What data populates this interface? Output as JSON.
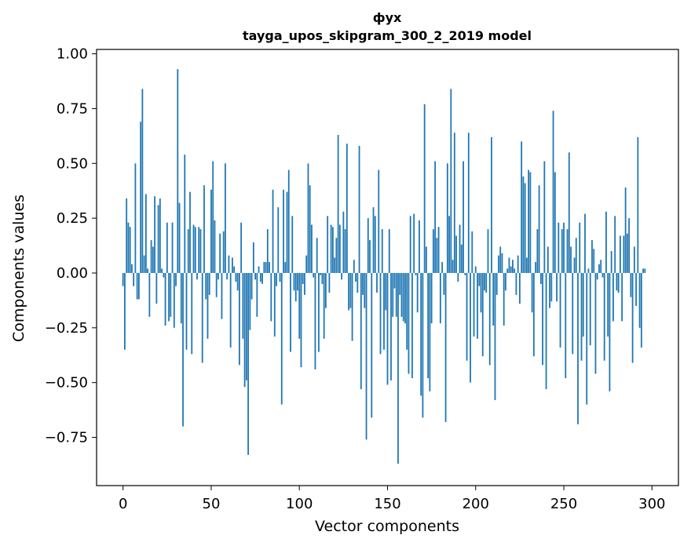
{
  "chart_data": {
    "type": "bar",
    "title_line1": "фух",
    "title_line2": "tayga_upos_skipgram_300_2_2019 model",
    "xlabel": "Vector components",
    "ylabel": "Components values",
    "xlim": [
      -15,
      315
    ],
    "ylim": [
      -0.97,
      1.02
    ],
    "xticks": [
      0,
      50,
      100,
      150,
      200,
      250,
      300
    ],
    "xtick_labels": [
      "0",
      "50",
      "100",
      "150",
      "200",
      "250",
      "300"
    ],
    "yticks": [
      1.0,
      0.75,
      0.5,
      0.25,
      0.0,
      -0.25,
      -0.5,
      -0.75
    ],
    "ytick_labels": [
      "1.00",
      "0.75",
      "0.50",
      "0.25",
      "0.00",
      "−0.25",
      "−0.50",
      "−0.75"
    ],
    "grid": false,
    "bar_color": "#1f77b4",
    "values": [
      -0.06,
      -0.35,
      0.34,
      0.23,
      0.21,
      0.04,
      -0.06,
      0.5,
      -0.12,
      -0.12,
      0.69,
      0.84,
      0.08,
      0.36,
      0.02,
      -0.2,
      0.15,
      0.12,
      0.35,
      -0.14,
      0.31,
      0.34,
      0.02,
      -0.02,
      -0.24,
      0.23,
      -0.22,
      -0.2,
      0.23,
      -0.25,
      -0.06,
      0.93,
      0.32,
      -0.23,
      -0.7,
      0.54,
      -0.35,
      0.2,
      0.37,
      -0.37,
      0.22,
      0.21,
      -0.03,
      0.21,
      0.2,
      -0.41,
      0.4,
      -0.12,
      -0.3,
      -0.1,
      0.38,
      0.51,
      0.24,
      -0.11,
      -0.03,
      0.18,
      -0.21,
      0.19,
      0.5,
      -0.03,
      0.08,
      -0.34,
      0.07,
      0.03,
      -0.04,
      -0.08,
      -0.42,
      0.23,
      -0.3,
      -0.52,
      -0.49,
      -0.83,
      -0.26,
      -0.12,
      0.14,
      -0.03,
      -0.2,
      0.03,
      -0.04,
      -0.05,
      0.05,
      0.05,
      0.2,
      0.05,
      -0.22,
      0.38,
      -0.29,
      -0.06,
      0.3,
      -0.04,
      -0.6,
      0.38,
      0.05,
      0.37,
      0.47,
      -0.36,
      0.26,
      -0.08,
      -0.13,
      -0.08,
      -0.3,
      -0.43,
      -0.05,
      -0.1,
      0.08,
      0.5,
      0.4,
      0.22,
      -0.02,
      -0.44,
      0.16,
      -0.36,
      -0.01,
      -0.05,
      -0.3,
      -0.16,
      0.26,
      -0.09,
      0.22,
      0.21,
      0.07,
      0.16,
      0.63,
      0.22,
      -0.03,
      0.28,
      0.2,
      0.59,
      -0.17,
      -0.16,
      -0.31,
      0.06,
      -0.04,
      -0.09,
      0.58,
      -0.53,
      -0.1,
      -0.16,
      -0.76,
      0.25,
      0.15,
      -0.66,
      0.3,
      0.26,
      -0.09,
      0.47,
      -0.37,
      0.2,
      -0.35,
      -0.17,
      -0.51,
      0.2,
      -0.49,
      -0.2,
      -0.07,
      -0.2,
      -0.87,
      -0.1,
      -0.2,
      -0.22,
      -0.23,
      -0.35,
      -0.46,
      0.26,
      -0.48,
      0.27,
      -0.01,
      -0.18,
      0.24,
      -0.56,
      -0.66,
      0.77,
      0.12,
      -0.48,
      -0.54,
      -0.23,
      0.2,
      0.51,
      0.16,
      0.21,
      -0.23,
      0.05,
      -0.1,
      -0.68,
      0.5,
      0.26,
      0.84,
      0.06,
      0.64,
      0.17,
      -0.04,
      0.22,
      0.13,
      0.51,
      -0.01,
      -0.4,
      0.64,
      -0.5,
      0.19,
      -0.29,
      0.03,
      -0.3,
      -0.06,
      -0.18,
      -0.38,
      -0.08,
      -0.09,
      0.2,
      -0.42,
      0.62,
      -0.24,
      -0.58,
      -0.1,
      0.08,
      0.12,
      0.09,
      -0.24,
      -0.08,
      0.02,
      0.07,
      0.03,
      0.06,
      0.02,
      -0.1,
      0.08,
      -0.14,
      0.6,
      0.44,
      0.41,
      0.07,
      0.47,
      0.46,
      -0.18,
      -0.38,
      0.05,
      0.2,
      0.4,
      -0.05,
      -0.42,
      0.51,
      -0.53,
      0.12,
      -0.16,
      -0.13,
      0.74,
      0.46,
      -0.13,
      0.23,
      -0.34,
      0.2,
      0.23,
      -0.48,
      0.2,
      0.55,
      0.12,
      -0.37,
      0.07,
      0.16,
      -0.69,
      0.23,
      -0.4,
      -0.29,
      0.27,
      -0.6,
      0.02,
      -0.33,
      0.15,
      0.11,
      -0.46,
      -0.03,
      0.04,
      0.06,
      -0.02,
      -0.4,
      0.28,
      -0.29,
      -0.54,
      0.1,
      -0.22,
      0.26,
      -0.08,
      -0.09,
      0.17,
      -0.22,
      0.17,
      0.39,
      0.18,
      0.25,
      -0.11,
      -0.41,
      0.12,
      -0.15,
      0.62,
      -0.25,
      -0.34,
      0.02,
      0.02
    ]
  }
}
